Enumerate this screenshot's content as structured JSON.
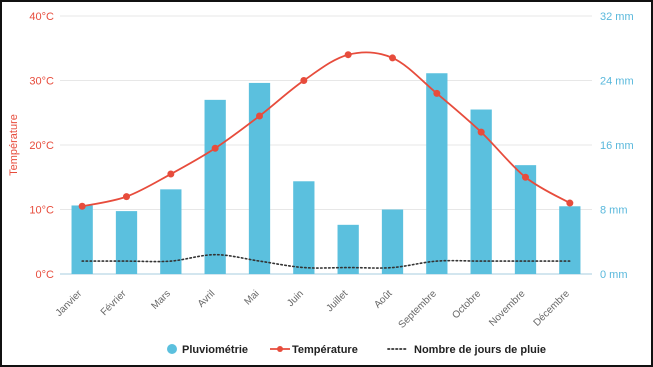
{
  "chart_data": {
    "type": "bar",
    "categories": [
      "Janvier",
      "Février",
      "Mars",
      "Avril",
      "Mai",
      "Juin",
      "Juillet",
      "Août",
      "Septembre",
      "Octobre",
      "Novembre",
      "Décembre"
    ],
    "series": [
      {
        "name": "Pluviométrie",
        "type": "bar",
        "axis": "right",
        "color": "#5bc0de",
        "values": [
          8.5,
          7.8,
          10.5,
          21.6,
          23.7,
          11.5,
          6.1,
          8.0,
          24.9,
          20.4,
          13.5,
          8.4
        ]
      },
      {
        "name": "Température",
        "type": "line",
        "axis": "left",
        "color": "#e74c3c",
        "values": [
          10.5,
          12,
          15.5,
          19.5,
          24.5,
          30,
          34,
          33.5,
          28,
          22,
          15,
          11
        ]
      },
      {
        "name": "Nombre de jours de pluie",
        "type": "line",
        "axis": "left",
        "style": "dotted",
        "color": "#333333",
        "values": [
          2,
          2,
          2,
          3,
          2,
          1,
          1,
          1,
          2,
          2,
          2,
          2
        ]
      }
    ],
    "left_axis": {
      "label": "Température",
      "ticks": [
        "0°C",
        "10°C",
        "20°C",
        "30°C",
        "40°C"
      ],
      "range": [
        0,
        40
      ]
    },
    "right_axis": {
      "ticks": [
        "0 mm",
        "8 mm",
        "16 mm",
        "24 mm",
        "32 mm"
      ],
      "range": [
        0,
        32
      ]
    },
    "grid": true,
    "legend_position": "bottom"
  }
}
